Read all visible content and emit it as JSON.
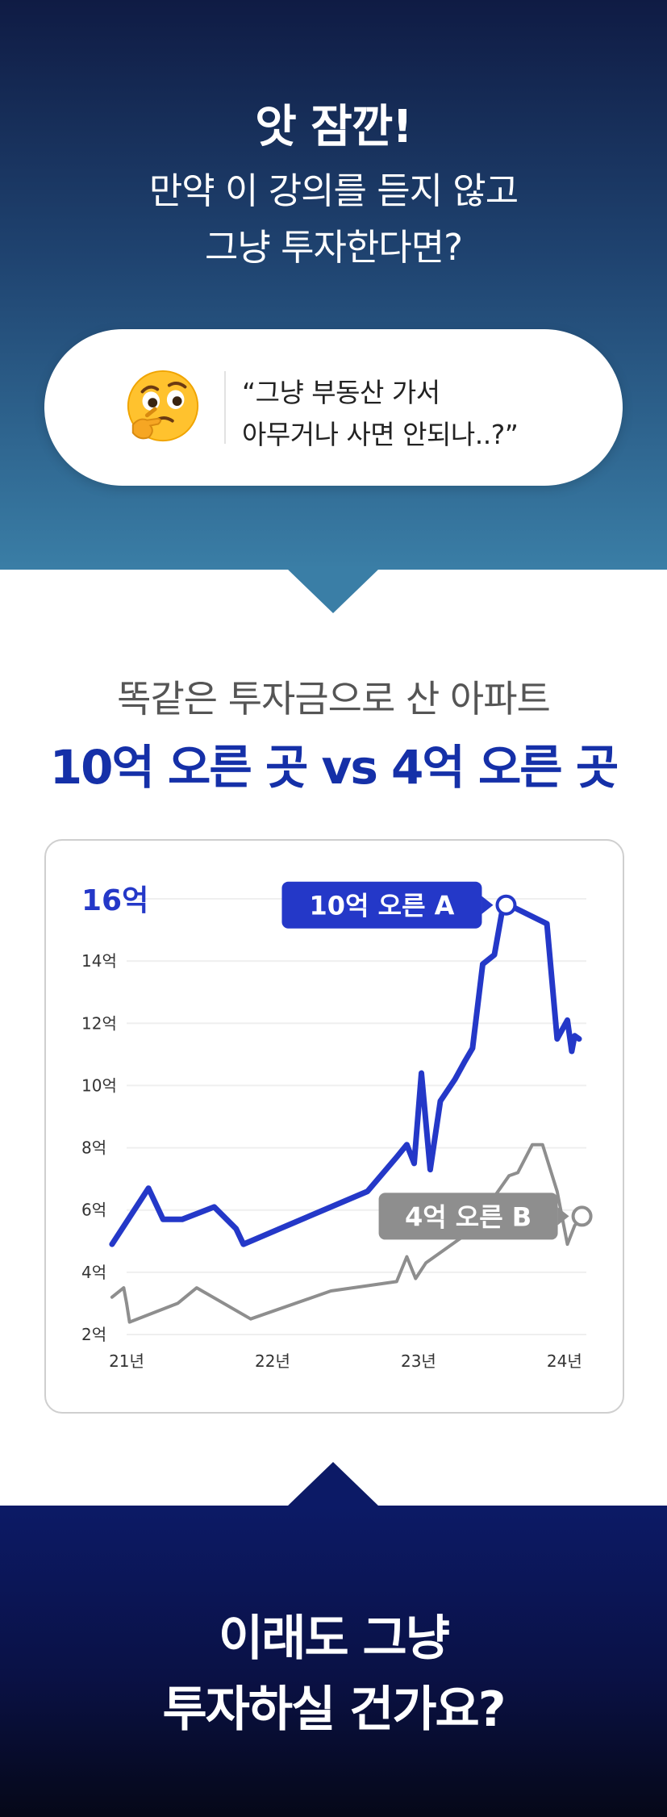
{
  "hero": {
    "title": "앗 잠깐!",
    "subtitle_line1": "만약 이 강의를 듣지 않고",
    "subtitle_line2": "그냥 투자한다면?"
  },
  "bubble": {
    "emoji_icon": "thinking-face-emoji",
    "quote_line1": "“그냥 부동산 가서",
    "quote_line2": "아무거나 사면 안되나..?”"
  },
  "headline": {
    "line1": "똑같은 투자금으로 산 아파트",
    "line2": "10억 오른 곳 vs 4억 오른 곳"
  },
  "chart_data": {
    "type": "line",
    "y_unit": "억",
    "y_tick_labels": [
      "2억",
      "4억",
      "6억",
      "8억",
      "10억",
      "12억",
      "14억",
      "16억"
    ],
    "y_ticks": [
      2,
      4,
      6,
      8,
      10,
      12,
      14,
      16
    ],
    "ylim": [
      2,
      16
    ],
    "x_tick_labels": [
      "21년",
      "22년",
      "23년",
      "24년"
    ],
    "x_ticks": [
      2021,
      2022,
      2023,
      2024
    ],
    "xlim": [
      2021,
      2024.15
    ],
    "grid": true,
    "series": [
      {
        "name": "10억 오른 A",
        "color": "#2438c8",
        "x": [
          2020.9,
          2021.15,
          2021.25,
          2021.38,
          2021.6,
          2021.75,
          2021.8,
          2022.1,
          2022.4,
          2022.65,
          2022.85,
          2022.92,
          2022.97,
          2023.02,
          2023.08,
          2023.15,
          2023.25,
          2023.32,
          2023.37,
          2023.44,
          2023.52,
          2023.58,
          2023.62,
          2023.88,
          2023.95,
          2024.02,
          2024.05,
          2024.07,
          2024.1
        ],
        "y": [
          4.9,
          6.7,
          5.7,
          5.7,
          6.1,
          5.4,
          4.9,
          5.5,
          6.1,
          6.6,
          7.7,
          8.1,
          7.5,
          10.4,
          7.3,
          9.5,
          10.2,
          10.8,
          11.2,
          13.9,
          14.2,
          15.8,
          15.8,
          15.2,
          11.5,
          12.1,
          11.1,
          11.6,
          11.5
        ]
      },
      {
        "name": "4억 오른 B",
        "color": "#8e8e8e",
        "x": [
          2020.9,
          2020.98,
          2021.0,
          2021.02,
          2021.35,
          2021.48,
          2021.85,
          2022.4,
          2022.85,
          2022.92,
          2022.98,
          2023.05,
          2023.35,
          2023.62,
          2023.68,
          2023.78,
          2023.85,
          2023.95,
          2024.02,
          2024.07,
          2024.12
        ],
        "y": [
          3.2,
          3.5,
          3.0,
          2.4,
          3.0,
          3.5,
          2.5,
          3.4,
          3.7,
          4.5,
          3.8,
          4.3,
          5.3,
          7.1,
          7.2,
          8.1,
          8.1,
          6.6,
          4.9,
          5.5,
          5.8
        ]
      }
    ],
    "annotations": [
      {
        "text": "10억 오른 A",
        "series": "10억 오른 A",
        "point": [
          2023.6,
          15.8
        ]
      },
      {
        "text": "4억 오른 B",
        "series": "4억 오른 B",
        "point": [
          2024.12,
          5.8
        ]
      }
    ]
  },
  "bottom": {
    "line1": "이래도 그냥",
    "line2": "투자하실 건가요?"
  },
  "colors": {
    "accent_blue": "#1530a8",
    "series_a": "#2438c8",
    "series_b": "#8e8e8e",
    "hero_top": "#0f1b44",
    "hero_bottom": "#3a7ea6",
    "bottom_bg": "#0a1145"
  }
}
